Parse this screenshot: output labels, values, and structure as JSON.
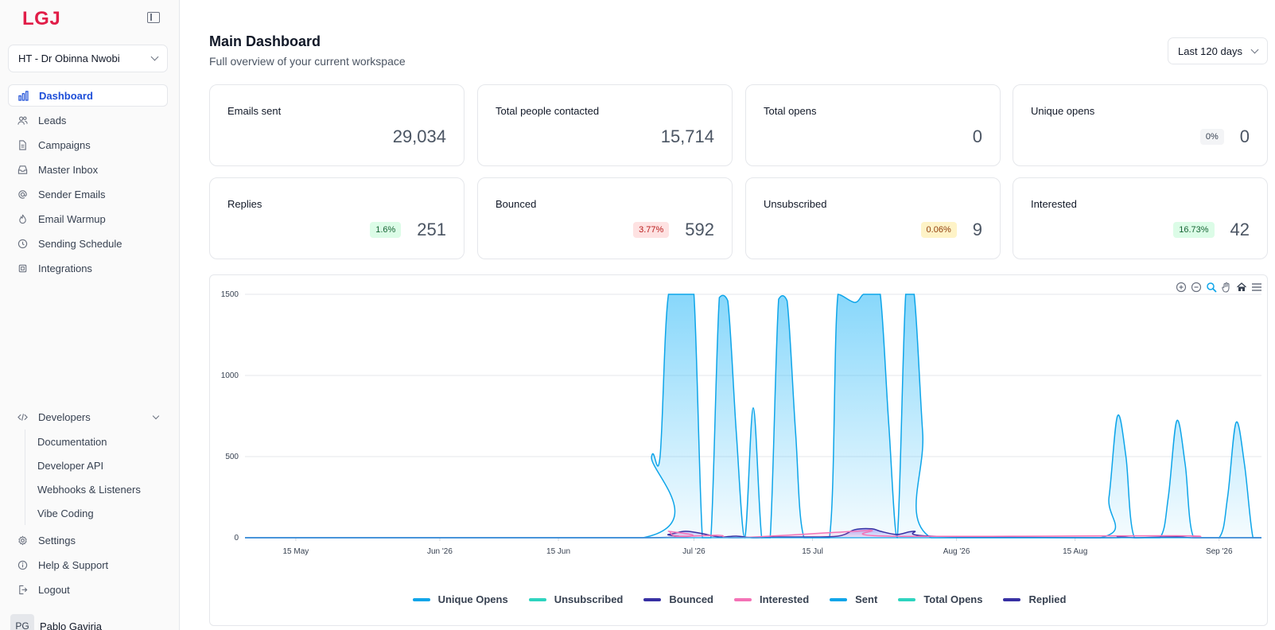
{
  "app": {
    "logo": "LGJ"
  },
  "workspace": {
    "name": "HT - Dr Obinna Nwobi"
  },
  "sidebar": {
    "items": [
      {
        "label": "Dashboard",
        "icon": "bar-chart-icon",
        "active": true
      },
      {
        "label": "Leads",
        "icon": "users-icon"
      },
      {
        "label": "Campaigns",
        "icon": "document-icon"
      },
      {
        "label": "Master Inbox",
        "icon": "inbox-icon"
      },
      {
        "label": "Sender Emails",
        "icon": "at-sign-icon"
      },
      {
        "label": "Email Warmup",
        "icon": "flame-icon"
      },
      {
        "label": "Sending Schedule",
        "icon": "clock-icon"
      },
      {
        "label": "Integrations",
        "icon": "cpu-icon"
      }
    ],
    "developers": {
      "label": "Developers",
      "items": [
        "Documentation",
        "Developer API",
        "Webhooks & Listeners",
        "Vibe Coding"
      ]
    },
    "bottom": [
      {
        "label": "Settings",
        "icon": "gear-icon"
      },
      {
        "label": "Help & Support",
        "icon": "info-icon"
      },
      {
        "label": "Logout",
        "icon": "logout-icon"
      }
    ],
    "user": {
      "initials": "PG",
      "name": "Pablo Gaviria"
    }
  },
  "header": {
    "title": "Main Dashboard",
    "subtitle": "Full overview of your current workspace",
    "range": "Last 120 days"
  },
  "stats": [
    {
      "label": "Emails sent",
      "value": "29,034",
      "badge": ""
    },
    {
      "label": "Total people contacted",
      "value": "15,714",
      "badge": ""
    },
    {
      "label": "Total opens",
      "value": "0",
      "badge": ""
    },
    {
      "label": "Unique opens",
      "value": "0",
      "badge": "0%",
      "badge_color": "gray"
    },
    {
      "label": "Replies",
      "value": "251",
      "badge": "1.6%",
      "badge_color": "green"
    },
    {
      "label": "Bounced",
      "value": "592",
      "badge": "3.77%",
      "badge_color": "red"
    },
    {
      "label": "Unsubscribed",
      "value": "9",
      "badge": "0.06%",
      "badge_color": "amber"
    },
    {
      "label": "Interested",
      "value": "42",
      "badge": "16.73%",
      "badge_color": "green"
    }
  ],
  "colors": {
    "sent": "#0ea5e9",
    "unique_opens": "#0ea5e9",
    "total_opens": "#2dd4bf",
    "unsubscribed": "#2dd4bf",
    "bounced": "#3730a3",
    "replied": "#3730a3",
    "interested": "#f472b6",
    "accent": "#1d4ed8",
    "logo": "#e11d48"
  },
  "chart_data": {
    "type": "area",
    "x_range": [
      "2026-05-09",
      "2026-09-06"
    ],
    "ylim": [
      0,
      1500
    ],
    "yticks": [
      "0",
      "500",
      "1000",
      "1500"
    ],
    "xticks": [
      {
        "date": "2026-05-15",
        "label": "15 May"
      },
      {
        "date": "2026-06-01",
        "label": "Jun '26"
      },
      {
        "date": "2026-06-15",
        "label": "15 Jun"
      },
      {
        "date": "2026-07-01",
        "label": "Jul '26"
      },
      {
        "date": "2026-07-15",
        "label": "15 Jul"
      },
      {
        "date": "2026-08-01",
        "label": "Aug '26"
      },
      {
        "date": "2026-08-15",
        "label": "15 Aug"
      },
      {
        "date": "2026-09-01",
        "label": "Sep '26"
      }
    ],
    "legend": [
      "Unique Opens",
      "Unsubscribed",
      "Bounced",
      "Interested",
      "Sent",
      "Total Opens",
      "Replied"
    ],
    "grid": true,
    "series": [
      {
        "name": "Sent",
        "points": [
          [
            "2026-05-09",
            0
          ],
          [
            "2026-06-25",
            0
          ],
          [
            "2026-06-26",
            500
          ],
          [
            "2026-06-27",
            500
          ],
          [
            "2026-06-28",
            1500
          ],
          [
            "2026-06-30",
            1500
          ],
          [
            "2026-07-01",
            1500
          ],
          [
            "2026-07-02",
            0
          ],
          [
            "2026-07-03",
            0
          ],
          [
            "2026-07-04",
            1480
          ],
          [
            "2026-07-05",
            1460
          ],
          [
            "2026-07-06",
            650
          ],
          [
            "2026-07-07",
            0
          ],
          [
            "2026-07-08",
            800
          ],
          [
            "2026-07-09",
            0
          ],
          [
            "2026-07-10",
            0
          ],
          [
            "2026-07-11",
            1470
          ],
          [
            "2026-07-12",
            1460
          ],
          [
            "2026-07-13",
            650
          ],
          [
            "2026-07-14",
            0
          ],
          [
            "2026-07-17",
            0
          ],
          [
            "2026-07-18",
            1500
          ],
          [
            "2026-07-20",
            1450
          ],
          [
            "2026-07-21",
            1500
          ],
          [
            "2026-07-22",
            1500
          ],
          [
            "2026-07-23",
            1500
          ],
          [
            "2026-07-24",
            700
          ],
          [
            "2026-07-25",
            0
          ],
          [
            "2026-07-26",
            1500
          ],
          [
            "2026-07-27",
            1500
          ],
          [
            "2026-07-28",
            650
          ],
          [
            "2026-07-29",
            0
          ],
          [
            "2026-08-18",
            0
          ],
          [
            "2026-08-19",
            250
          ],
          [
            "2026-08-20",
            750
          ],
          [
            "2026-08-21",
            500
          ],
          [
            "2026-08-22",
            0
          ],
          [
            "2026-08-25",
            0
          ],
          [
            "2026-08-26",
            250
          ],
          [
            "2026-08-27",
            720
          ],
          [
            "2026-08-28",
            450
          ],
          [
            "2026-08-29",
            0
          ],
          [
            "2026-09-01",
            0
          ],
          [
            "2026-09-02",
            250
          ],
          [
            "2026-09-03",
            710
          ],
          [
            "2026-09-04",
            450
          ],
          [
            "2026-09-05",
            0
          ],
          [
            "2026-09-06",
            0
          ]
        ]
      },
      {
        "name": "Replied",
        "points": [
          [
            "2026-05-09",
            0
          ],
          [
            "2026-06-25",
            0
          ],
          [
            "2026-06-28",
            20
          ],
          [
            "2026-06-30",
            40
          ],
          [
            "2026-07-02",
            25
          ],
          [
            "2026-07-04",
            5
          ],
          [
            "2026-07-06",
            10
          ],
          [
            "2026-07-08",
            0
          ],
          [
            "2026-07-11",
            5
          ],
          [
            "2026-07-13",
            5
          ],
          [
            "2026-07-18",
            10
          ],
          [
            "2026-07-20",
            50
          ],
          [
            "2026-07-22",
            55
          ],
          [
            "2026-07-23",
            40
          ],
          [
            "2026-07-25",
            20
          ],
          [
            "2026-07-27",
            40
          ],
          [
            "2026-07-29",
            10
          ],
          [
            "2026-08-19",
            0
          ],
          [
            "2026-08-20",
            8
          ],
          [
            "2026-08-22",
            0
          ],
          [
            "2026-08-27",
            6
          ],
          [
            "2026-08-29",
            0
          ],
          [
            "2026-09-06",
            0
          ]
        ]
      },
      {
        "name": "Interested",
        "points": [
          [
            "2026-05-09",
            0
          ],
          [
            "2026-06-27",
            0
          ],
          [
            "2026-06-28",
            40
          ],
          [
            "2026-06-29",
            10
          ],
          [
            "2026-07-04",
            15
          ],
          [
            "2026-07-06",
            0
          ],
          [
            "2026-07-20",
            40
          ],
          [
            "2026-07-22",
            45
          ],
          [
            "2026-07-24",
            10
          ],
          [
            "2026-08-27",
            12
          ],
          [
            "2026-08-29",
            0
          ],
          [
            "2026-09-06",
            0
          ]
        ]
      }
    ]
  }
}
